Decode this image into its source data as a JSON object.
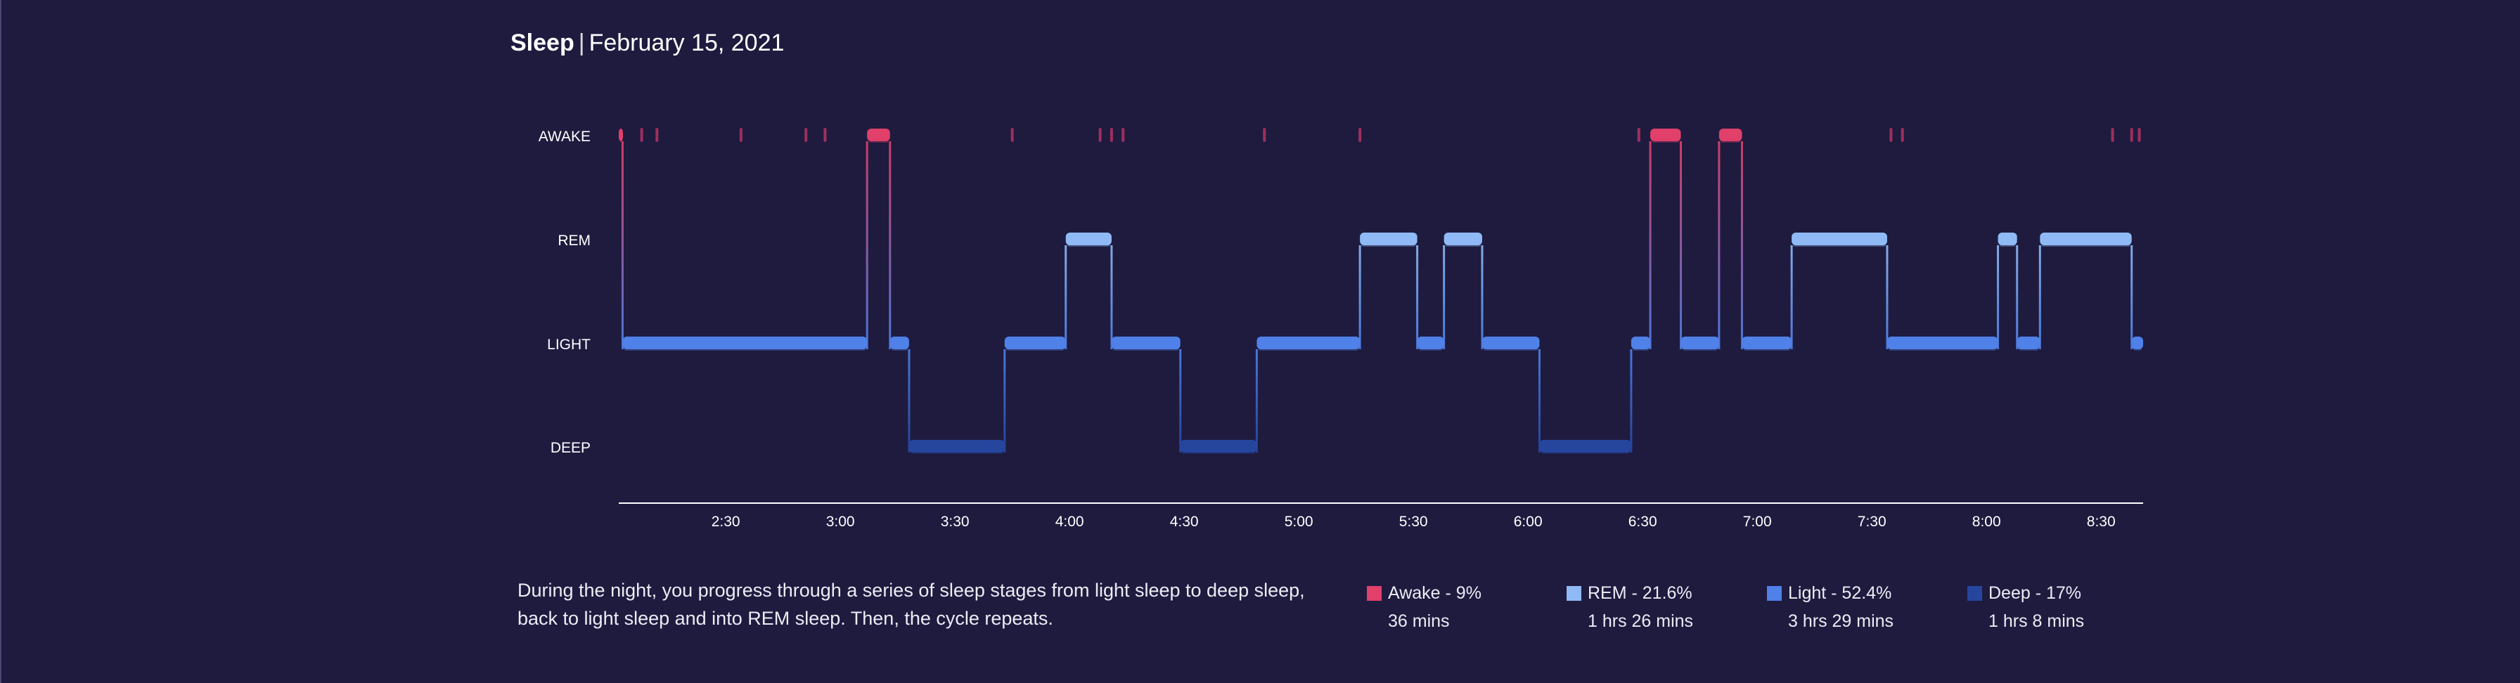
{
  "header": {
    "title": "Sleep",
    "date": "February 15, 2021"
  },
  "colors": {
    "background": "#1e1b3f",
    "awake": "#e0406a",
    "rem": "#8fbaf5",
    "light": "#4f81e8",
    "deep": "#26469e",
    "axis": "#ffffff",
    "awake_tick": "#9e2f5e"
  },
  "description": "During the night, you progress through a series of sleep stages from light sleep to deep sleep, back to light sleep and into REM sleep. Then, the cycle repeats.",
  "legend": [
    {
      "label": "Awake - 9%",
      "duration": "36 mins",
      "color": "#e0406a"
    },
    {
      "label": "REM - 21.6%",
      "duration": "1 hrs 26 mins",
      "color": "#8fbaf5"
    },
    {
      "label": "Light - 52.4%",
      "duration": "3 hrs 29 mins",
      "color": "#4f81e8"
    },
    {
      "label": "Deep - 17%",
      "duration": "1 hrs 8 mins",
      "color": "#26469e"
    }
  ],
  "chart_data": {
    "type": "step",
    "title": "Sleep",
    "subtitle": "February 15, 2021",
    "y_levels": [
      "AWAKE",
      "REM",
      "LIGHT",
      "DEEP"
    ],
    "x_range": [
      "02:02",
      "08:41"
    ],
    "x_ticks": [
      "2:30",
      "3:00",
      "3:30",
      "4:00",
      "4:30",
      "5:00",
      "5:30",
      "6:00",
      "6:30",
      "7:00",
      "7:30",
      "8:00",
      "8:30"
    ],
    "grid": false,
    "stages": [
      {
        "stage": "AWAKE",
        "start": "02:02",
        "end": "02:03"
      },
      {
        "stage": "LIGHT",
        "start": "02:03",
        "end": "03:07"
      },
      {
        "stage": "AWAKE",
        "start": "03:07",
        "end": "03:13"
      },
      {
        "stage": "LIGHT",
        "start": "03:13",
        "end": "03:18"
      },
      {
        "stage": "DEEP",
        "start": "03:18",
        "end": "03:43"
      },
      {
        "stage": "LIGHT",
        "start": "03:43",
        "end": "03:59"
      },
      {
        "stage": "REM",
        "start": "03:59",
        "end": "04:11"
      },
      {
        "stage": "LIGHT",
        "start": "04:11",
        "end": "04:29"
      },
      {
        "stage": "DEEP",
        "start": "04:29",
        "end": "04:49"
      },
      {
        "stage": "LIGHT",
        "start": "04:49",
        "end": "05:16"
      },
      {
        "stage": "REM",
        "start": "05:16",
        "end": "05:31"
      },
      {
        "stage": "LIGHT",
        "start": "05:31",
        "end": "05:38"
      },
      {
        "stage": "REM",
        "start": "05:38",
        "end": "05:48"
      },
      {
        "stage": "LIGHT",
        "start": "05:48",
        "end": "06:03"
      },
      {
        "stage": "DEEP",
        "start": "06:03",
        "end": "06:27"
      },
      {
        "stage": "LIGHT",
        "start": "06:27",
        "end": "06:32"
      },
      {
        "stage": "AWAKE",
        "start": "06:32",
        "end": "06:40"
      },
      {
        "stage": "LIGHT",
        "start": "06:40",
        "end": "06:50"
      },
      {
        "stage": "AWAKE",
        "start": "06:50",
        "end": "06:56"
      },
      {
        "stage": "LIGHT",
        "start": "06:56",
        "end": "07:09"
      },
      {
        "stage": "REM",
        "start": "07:09",
        "end": "07:34"
      },
      {
        "stage": "LIGHT",
        "start": "07:34",
        "end": "08:03"
      },
      {
        "stage": "REM",
        "start": "08:03",
        "end": "08:08"
      },
      {
        "stage": "LIGHT",
        "start": "08:08",
        "end": "08:14"
      },
      {
        "stage": "REM",
        "start": "08:14",
        "end": "08:38"
      },
      {
        "stage": "LIGHT",
        "start": "08:38",
        "end": "08:41"
      }
    ],
    "brief_awakenings": [
      "02:08",
      "02:12",
      "02:34",
      "02:51",
      "02:56",
      "03:45",
      "04:08",
      "04:11",
      "04:14",
      "04:51",
      "05:16",
      "06:29",
      "07:35",
      "07:38",
      "08:33",
      "08:38",
      "08:40"
    ]
  }
}
